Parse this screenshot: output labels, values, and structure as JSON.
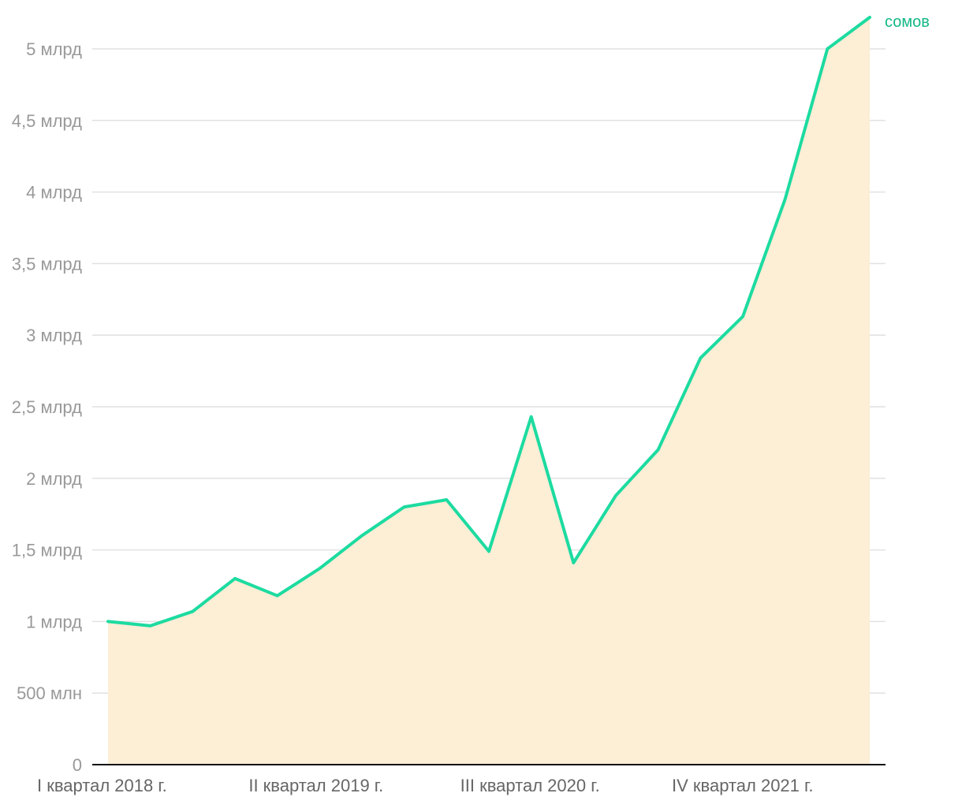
{
  "chart_data": {
    "type": "area",
    "unit_label": "сомов",
    "series": [
      {
        "values": [
          1.0,
          0.97,
          1.07,
          1.3,
          1.18,
          1.37,
          1.6,
          1.8,
          1.85,
          1.49,
          2.43,
          1.41,
          1.88,
          2.2,
          2.84,
          3.13,
          3.95,
          5.0,
          5.22
        ]
      }
    ],
    "x_ticks": [
      {
        "index": 0,
        "label": "I квартал 2018 г."
      },
      {
        "index": 5,
        "label": "II квартал 2019 г."
      },
      {
        "index": 10,
        "label": "III квартал 2020 г."
      },
      {
        "index": 15,
        "label": "IV квартал 2021 г."
      }
    ],
    "y_ticks": [
      {
        "value": 0,
        "label": "0"
      },
      {
        "value": 0.5,
        "label": "500 млн"
      },
      {
        "value": 1.0,
        "label": "1 млрд"
      },
      {
        "value": 1.5,
        "label": "1,5 млрд"
      },
      {
        "value": 2.0,
        "label": "2 млрд"
      },
      {
        "value": 2.5,
        "label": "2,5 млрд"
      },
      {
        "value": 3.0,
        "label": "3 млрд"
      },
      {
        "value": 3.5,
        "label": "3,5 млрд"
      },
      {
        "value": 4.0,
        "label": "4 млрд"
      },
      {
        "value": 4.5,
        "label": "4,5 млрд"
      },
      {
        "value": 5.0,
        "label": "5 млрд"
      }
    ],
    "ylim": [
      0,
      5.22
    ],
    "grid": true,
    "colors": {
      "line": "#1ddba0",
      "area": "#fdeed6",
      "unit_label": "#12b886"
    }
  }
}
